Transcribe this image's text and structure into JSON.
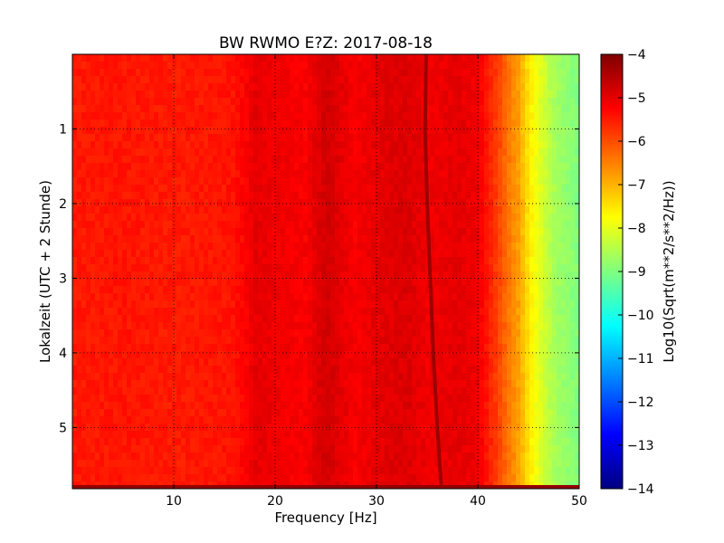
{
  "chart_data": {
    "type": "heatmap",
    "title": "BW RWMO E?Z: 2017-08-18",
    "xlabel": "Frequency [Hz]",
    "ylabel": "Lokalzeit (UTC + 2 Stunde)",
    "xlim": [
      0,
      50
    ],
    "ylim": [
      5.82,
      0
    ],
    "x_ticks": [
      10,
      20,
      30,
      40,
      50
    ],
    "y_ticks": [
      1,
      2,
      3,
      4,
      5
    ],
    "grid": true,
    "colormap": "jet",
    "colorbar": {
      "label": "Log10(Sqrt(m**2/s**2/Hz))",
      "range": [
        -14,
        -4
      ],
      "ticks": [
        -4,
        -5,
        -6,
        -7,
        -8,
        -9,
        -10,
        -11,
        -12,
        -13,
        -14
      ]
    },
    "spectral_profile": {
      "frequency_hz": [
        0,
        5,
        10,
        15,
        16,
        17,
        18,
        20,
        23,
        25,
        28,
        30,
        33,
        35,
        38,
        40,
        41,
        42,
        43,
        44,
        45,
        46,
        47,
        48,
        50
      ],
      "log10_amplitude": [
        -5.5,
        -5.45,
        -5.5,
        -5.45,
        -5.4,
        -5.25,
        -5.0,
        -5.1,
        -5.2,
        -4.8,
        -5.2,
        -5.0,
        -4.9,
        -5.1,
        -5.0,
        -5.1,
        -5.5,
        -5.9,
        -6.4,
        -6.8,
        -7.5,
        -8.0,
        -8.4,
        -8.7,
        -9.0
      ]
    },
    "dominant_line": {
      "description_value": "narrow high-amplitude line",
      "log10_amplitude": -4.3,
      "time_h": [
        0,
        1,
        2,
        3,
        4,
        5,
        5.82
      ],
      "frequency_hz": [
        34.9,
        34.8,
        35.0,
        35.3,
        35.6,
        36.0,
        36.4
      ]
    },
    "bottom_row_log10_amplitude": -4.2
  }
}
